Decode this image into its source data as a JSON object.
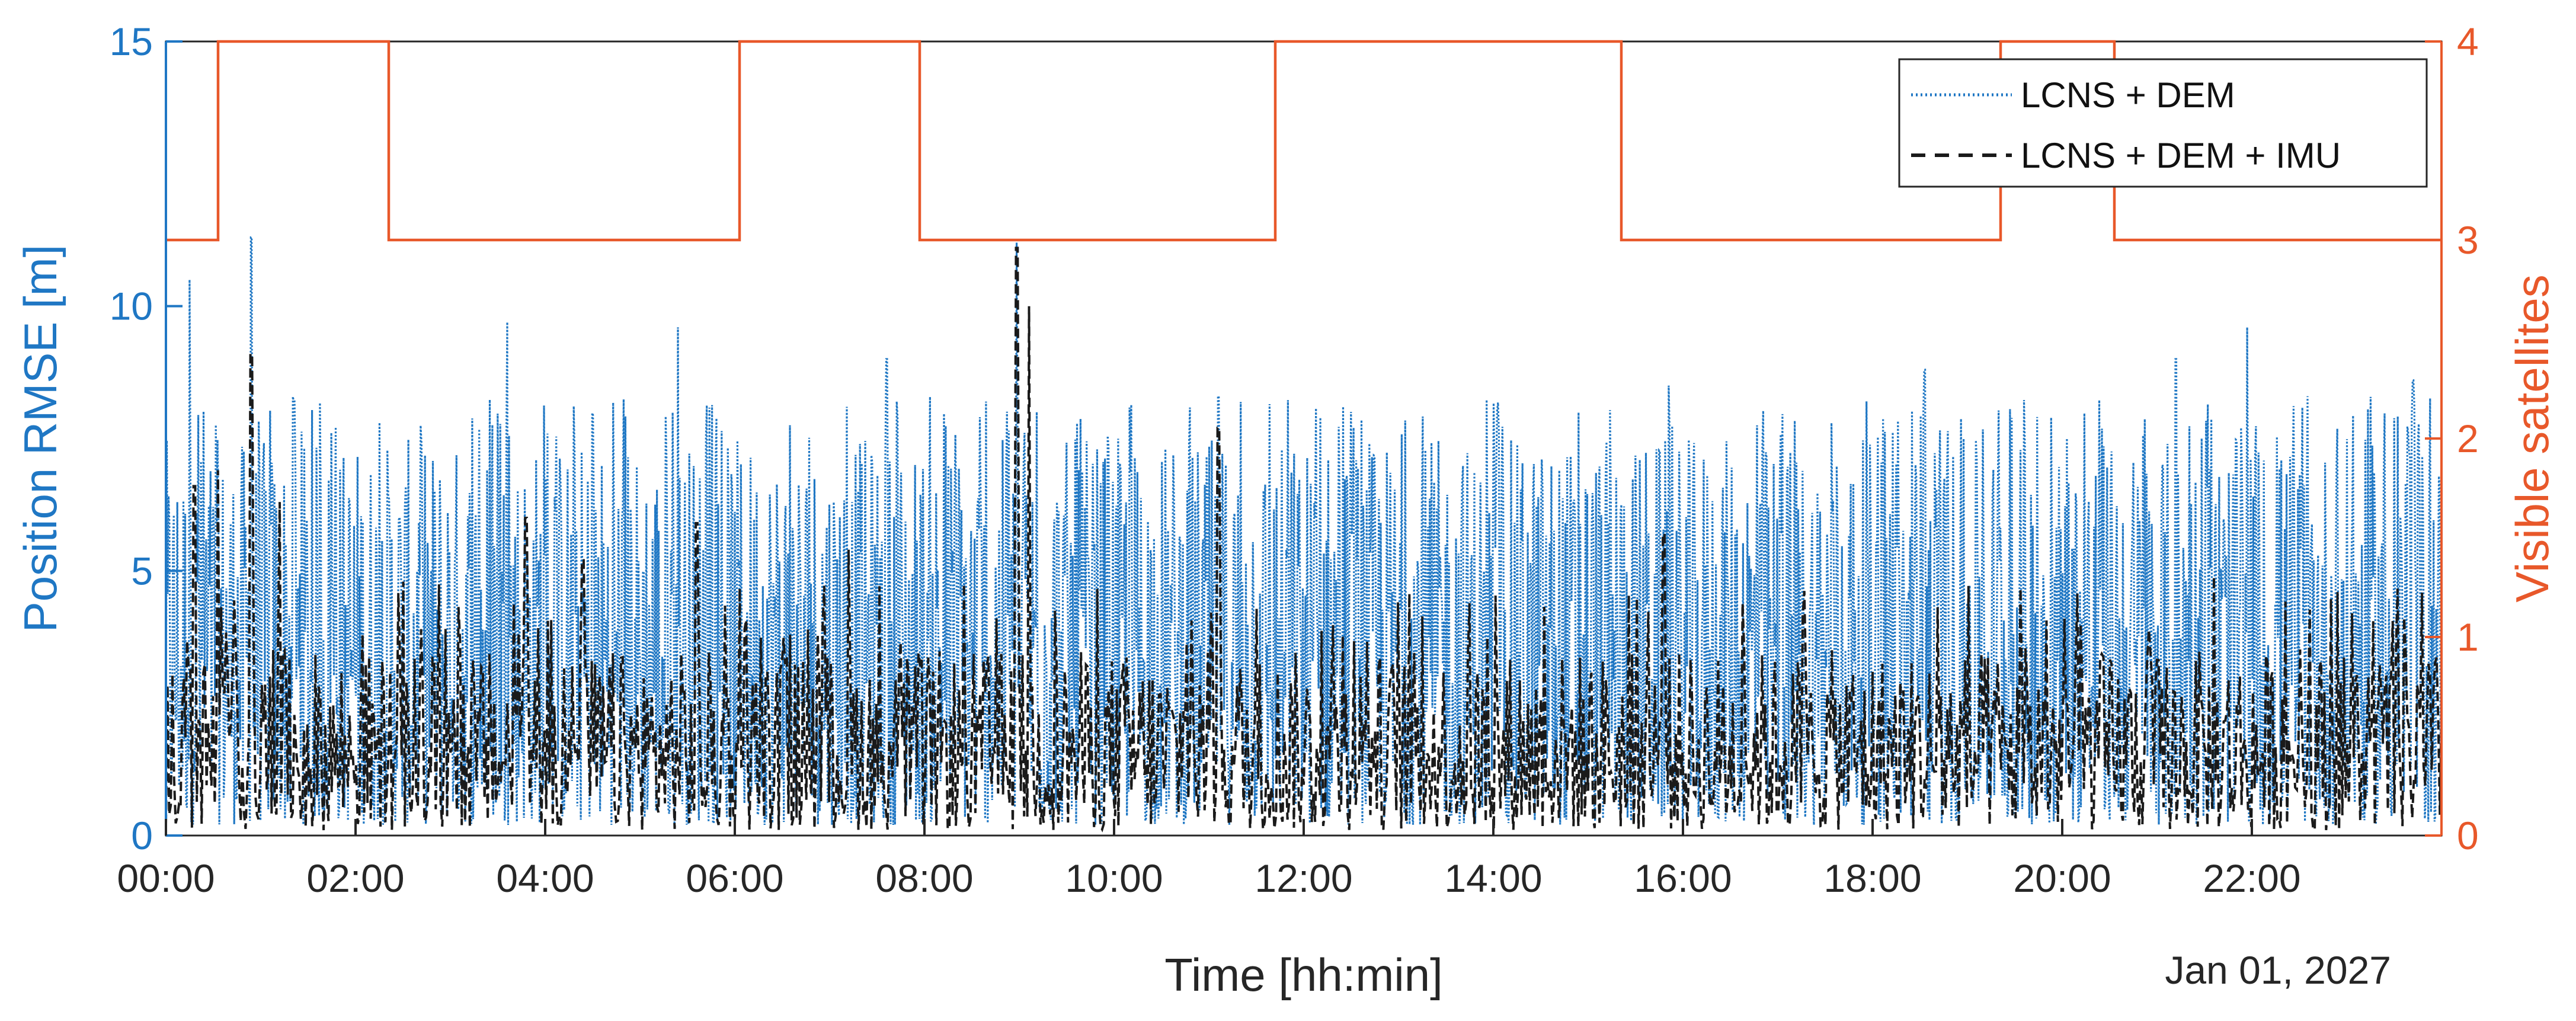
{
  "chart_data": {
    "type": "line",
    "xlabel": "Time [hh:min]",
    "date_label": "Jan 01, 2027",
    "x_ticks": [
      "00:00",
      "02:00",
      "04:00",
      "06:00",
      "08:00",
      "10:00",
      "12:00",
      "14:00",
      "16:00",
      "18:00",
      "20:00",
      "22:00"
    ],
    "x_tick_hours": [
      0,
      2,
      4,
      6,
      8,
      10,
      12,
      14,
      16,
      18,
      20,
      22
    ],
    "xlim_hours": [
      0,
      24
    ],
    "left_axis": {
      "label": "Position RMSE [m]",
      "ylim": [
        0,
        15
      ],
      "ticks": [
        "0",
        "5",
        "10",
        "15"
      ],
      "tick_values": [
        0,
        5,
        10,
        15
      ],
      "color": "#1f77c4"
    },
    "right_axis": {
      "label": "Visible satellites",
      "ylim": [
        0,
        4
      ],
      "ticks": [
        "0",
        "1",
        "2",
        "3",
        "4"
      ],
      "tick_values": [
        0,
        1,
        2,
        3,
        4
      ],
      "color": "#e8582a"
    },
    "legend": {
      "placement": "top-right"
    },
    "series": [
      {
        "name": "LCNS + DEM",
        "axis": "left",
        "style": "dotted",
        "color": "#1f77c4",
        "typical_range": [
          0.2,
          7.5
        ],
        "peaks": [
          {
            "t": 0.25,
            "v": 10.5
          },
          {
            "t": 0.9,
            "v": 11.3
          },
          {
            "t": 1.35,
            "v": 8.2
          },
          {
            "t": 3.6,
            "v": 9.7
          },
          {
            "t": 5.4,
            "v": 9.6
          },
          {
            "t": 7.6,
            "v": 9.0
          },
          {
            "t": 8.97,
            "v": 11.2
          },
          {
            "t": 11.1,
            "v": 8.3
          },
          {
            "t": 15.85,
            "v": 8.5
          },
          {
            "t": 18.55,
            "v": 8.8
          },
          {
            "t": 21.2,
            "v": 9.0
          },
          {
            "t": 21.95,
            "v": 9.6
          },
          {
            "t": 23.7,
            "v": 8.6
          }
        ]
      },
      {
        "name": "LCNS + DEM + IMU",
        "axis": "left",
        "style": "dashed",
        "color": "#1a1a1a",
        "typical_range": [
          0.1,
          3.5
        ],
        "peaks": [
          {
            "t": 0.3,
            "v": 6.6
          },
          {
            "t": 0.55,
            "v": 6.9
          },
          {
            "t": 0.9,
            "v": 9.1
          },
          {
            "t": 1.2,
            "v": 6.3
          },
          {
            "t": 3.8,
            "v": 6.0
          },
          {
            "t": 4.4,
            "v": 5.2
          },
          {
            "t": 5.6,
            "v": 5.9
          },
          {
            "t": 7.2,
            "v": 5.4
          },
          {
            "t": 8.97,
            "v": 11.1
          },
          {
            "t": 9.1,
            "v": 10.0
          },
          {
            "t": 11.1,
            "v": 7.7
          },
          {
            "t": 15.8,
            "v": 5.7
          },
          {
            "t": 21.6,
            "v": 4.9
          },
          {
            "t": 22.9,
            "v": 4.6
          }
        ]
      },
      {
        "name": "Visible satellites",
        "axis": "right",
        "style": "solid",
        "color": "#e8582a",
        "steps": [
          {
            "t": 0,
            "v": 3
          },
          {
            "t": 0.55,
            "v": 4
          },
          {
            "t": 2.35,
            "v": 3
          },
          {
            "t": 6.05,
            "v": 4
          },
          {
            "t": 7.95,
            "v": 3
          },
          {
            "t": 11.7,
            "v": 4
          },
          {
            "t": 15.35,
            "v": 3
          },
          {
            "t": 19.35,
            "v": 4
          },
          {
            "t": 20.55,
            "v": 3
          },
          {
            "t": 24,
            "v": 3
          }
        ]
      }
    ]
  }
}
